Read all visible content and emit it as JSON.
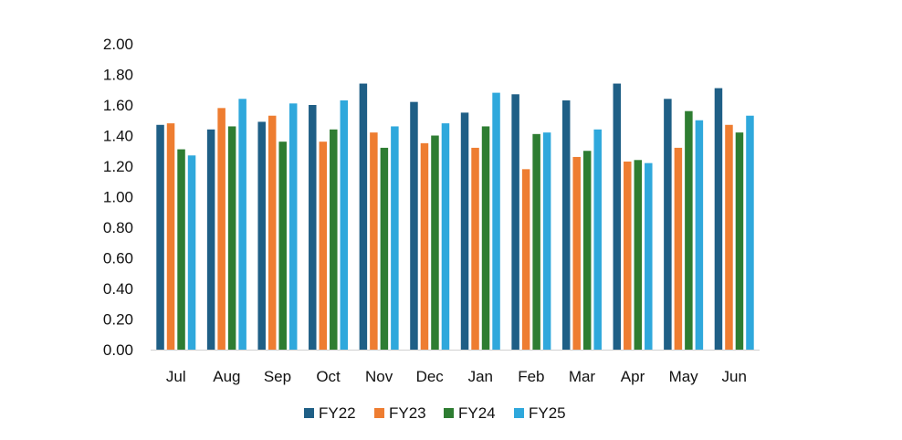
{
  "chart_data": {
    "type": "bar",
    "title": "",
    "xlabel": "",
    "ylabel": "",
    "ylim": [
      0,
      2.0
    ],
    "y_ticks": [
      "0.00",
      "0.20",
      "0.40",
      "0.60",
      "0.80",
      "1.00",
      "1.20",
      "1.40",
      "1.60",
      "1.80",
      "2.00"
    ],
    "grid": false,
    "legend_position": "bottom",
    "categories": [
      "Jul",
      "Aug",
      "Sep",
      "Oct",
      "Nov",
      "Dec",
      "Jan",
      "Feb",
      "Mar",
      "Apr",
      "May",
      "Jun"
    ],
    "series": [
      {
        "name": "FY22",
        "color": "#1f5f86",
        "values": [
          1.47,
          1.44,
          1.49,
          1.6,
          1.74,
          1.62,
          1.55,
          1.67,
          1.63,
          1.74,
          1.64,
          1.71
        ]
      },
      {
        "name": "FY23",
        "color": "#ee7d31",
        "values": [
          1.48,
          1.58,
          1.53,
          1.36,
          1.42,
          1.35,
          1.32,
          1.18,
          1.26,
          1.23,
          1.32,
          1.47
        ]
      },
      {
        "name": "FY24",
        "color": "#2e7d32",
        "values": [
          1.31,
          1.46,
          1.36,
          1.44,
          1.32,
          1.4,
          1.46,
          1.41,
          1.3,
          1.24,
          1.56,
          1.42
        ]
      },
      {
        "name": "FY25",
        "color": "#2fa8dc",
        "values": [
          1.27,
          1.64,
          1.61,
          1.63,
          1.46,
          1.48,
          1.68,
          1.42,
          1.44,
          1.22,
          1.5,
          1.53
        ]
      }
    ]
  }
}
